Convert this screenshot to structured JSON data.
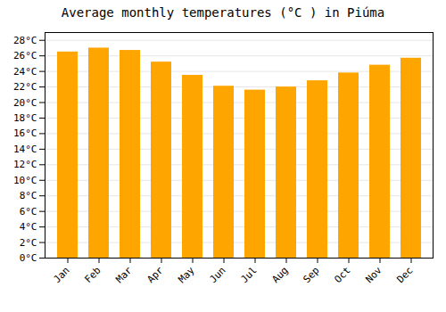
{
  "chart_data": {
    "type": "bar",
    "title": "Average monthly temperatures (°C ) in Piúma",
    "categories": [
      "Jan",
      "Feb",
      "Mar",
      "Apr",
      "May",
      "Jun",
      "Jul",
      "Aug",
      "Sep",
      "Oct",
      "Nov",
      "Dec"
    ],
    "values": [
      26.5,
      27.0,
      26.7,
      25.2,
      23.5,
      22.1,
      21.6,
      22.0,
      22.8,
      23.8,
      24.8,
      25.7
    ],
    "color": "#FFA500",
    "ylim": [
      0,
      29
    ],
    "yticks": [
      {
        "value": 0,
        "label": "0°C"
      },
      {
        "value": 2,
        "label": "2°C"
      },
      {
        "value": 4,
        "label": "4°C"
      },
      {
        "value": 6,
        "label": "6°C"
      },
      {
        "value": 8,
        "label": "8°C"
      },
      {
        "value": 10,
        "label": "10°C"
      },
      {
        "value": 12,
        "label": "12°C"
      },
      {
        "value": 14,
        "label": "14°C"
      },
      {
        "value": 16,
        "label": "16°C"
      },
      {
        "value": 18,
        "label": "18°C"
      },
      {
        "value": 20,
        "label": "20°C"
      },
      {
        "value": 22,
        "label": "22°C"
      },
      {
        "value": 24,
        "label": "24°C"
      },
      {
        "value": 26,
        "label": "26°C"
      },
      {
        "value": 28,
        "label": "28°C"
      }
    ],
    "grid": true
  }
}
